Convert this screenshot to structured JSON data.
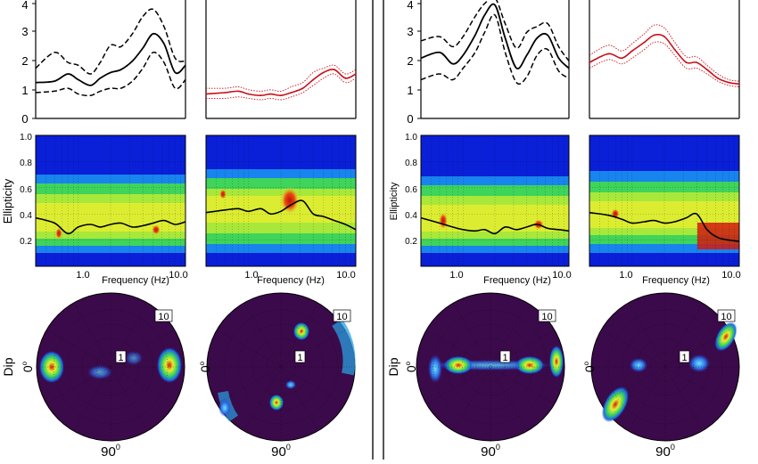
{
  "figure": {
    "panels": [
      {
        "hvsr_axis": {
          "yticks": [
            "0",
            "1",
            "2",
            "3",
            "4"
          ]
        },
        "ellipticity": {
          "ylabel": "Ellipticity",
          "yticks": [
            "0.2",
            "0.4",
            "0.6",
            "0.8",
            "1.0"
          ],
          "xlabel": "Frequency (Hz)",
          "xticks": [
            "1.0",
            "10.0"
          ]
        },
        "polar": {
          "dip_label": "Dip",
          "zero_label": "0",
          "ninety_label": "90",
          "ring_inner": "1",
          "ring_outer": "10"
        }
      },
      {
        "hvsr_axis": {
          "yticks": []
        },
        "ellipticity": {
          "ylabel": "",
          "yticks": [],
          "xlabel": "Frequency (Hz)",
          "xticks": [
            "1.0",
            "10.0"
          ]
        },
        "polar": {
          "dip_label": "",
          "zero_label": "0",
          "ninety_label": "90",
          "ring_inner": "1",
          "ring_outer": "10"
        }
      },
      {
        "hvsr_axis": {
          "yticks": [
            "0",
            "1",
            "2",
            "3",
            "4"
          ]
        },
        "ellipticity": {
          "ylabel": "Ellipticity",
          "yticks": [
            "0.2",
            "0.4",
            "0.6",
            "0.8",
            "1.0"
          ],
          "xlabel": "Frequency (Hz)",
          "xticks": [
            "1.0",
            "10.0"
          ]
        },
        "polar": {
          "dip_label": "Dip",
          "zero_label": "0",
          "ninety_label": "90",
          "ring_inner": "1",
          "ring_outer": "10"
        }
      },
      {
        "hvsr_axis": {
          "yticks": []
        },
        "ellipticity": {
          "ylabel": "",
          "yticks": [],
          "xlabel": "Frequency (Hz)",
          "xticks": [
            "1.0",
            "10.0"
          ]
        },
        "polar": {
          "dip_label": "",
          "zero_label": "0",
          "ninety_label": "90",
          "ring_inner": "1",
          "ring_outer": "10"
        }
      }
    ],
    "colors": {
      "jet_blue": "#0a1fd8",
      "jet_green": "#3fd45a",
      "jet_yellow": "#e8ee30",
      "jet_red": "#d21a10",
      "polar_bg": "#3b0a4a",
      "black_curve": "#000000",
      "red_curve": "#c8101a"
    }
  },
  "chart_data": [
    {
      "type": "line",
      "panel": "A-left",
      "xlog": true,
      "xlim": [
        0.4,
        10
      ],
      "ylim": [
        0,
        4
      ],
      "x": [
        0.4,
        0.6,
        0.8,
        1.0,
        1.3,
        1.6,
        2.0,
        2.5,
        3.2,
        4.0,
        5.0,
        6.3,
        8.0,
        10.0
      ],
      "series": [
        {
          "values": [
            1.25,
            1.3,
            1.55,
            1.35,
            1.15,
            1.4,
            1.6,
            1.7,
            2.0,
            2.45,
            2.95,
            2.6,
            1.6,
            1.85
          ]
        },
        {
          "values": [
            1.75,
            2.3,
            1.95,
            1.85,
            1.55,
            1.95,
            2.55,
            2.5,
            2.95,
            3.55,
            3.8,
            3.2,
            2.1,
            2.0
          ]
        },
        {
          "values": [
            0.9,
            0.95,
            1.05,
            0.85,
            0.8,
            0.95,
            1.05,
            1.05,
            1.3,
            1.75,
            2.3,
            1.95,
            1.05,
            1.35
          ]
        }
      ]
    },
    {
      "type": "line",
      "panel": "B-left",
      "xlog": true,
      "xlim": [
        0.4,
        10
      ],
      "ylim": [
        0,
        4
      ],
      "x": [
        0.4,
        0.6,
        0.8,
        1.0,
        1.3,
        1.6,
        2.0,
        2.5,
        3.2,
        4.0,
        5.0,
        6.3,
        8.0,
        10.0
      ],
      "series": [
        {
          "values": [
            0.85,
            0.9,
            0.95,
            0.85,
            0.8,
            0.85,
            0.8,
            0.9,
            1.05,
            1.35,
            1.6,
            1.7,
            1.4,
            1.55
          ]
        },
        {
          "values": [
            1.05,
            1.05,
            1.1,
            1.0,
            0.95,
            1.0,
            0.95,
            1.1,
            1.25,
            1.6,
            1.75,
            1.85,
            1.55,
            1.7
          ]
        },
        {
          "values": [
            0.7,
            0.7,
            0.75,
            0.7,
            0.65,
            0.7,
            0.65,
            0.75,
            0.9,
            1.15,
            1.4,
            1.55,
            1.25,
            1.4
          ]
        }
      ]
    },
    {
      "type": "line",
      "panel": "A-right",
      "xlog": true,
      "xlim": [
        0.4,
        10
      ],
      "ylim": [
        0,
        4
      ],
      "x": [
        0.4,
        0.6,
        0.8,
        1.0,
        1.3,
        1.6,
        2.0,
        2.5,
        3.2,
        4.0,
        5.0,
        6.3,
        8.0,
        10.0
      ],
      "series": [
        {
          "values": [
            2.1,
            2.3,
            1.9,
            2.2,
            2.9,
            3.6,
            3.95,
            2.8,
            1.75,
            2.2,
            2.8,
            2.9,
            2.1,
            1.75
          ]
        },
        {
          "values": [
            2.7,
            2.85,
            2.5,
            2.85,
            3.55,
            4.0,
            4.2,
            3.3,
            2.45,
            3.0,
            3.2,
            3.3,
            2.5,
            2.0
          ]
        },
        {
          "values": [
            1.35,
            1.55,
            1.35,
            1.75,
            2.3,
            3.0,
            3.6,
            2.3,
            1.25,
            1.45,
            2.2,
            2.4,
            1.65,
            1.4
          ]
        }
      ]
    },
    {
      "type": "line",
      "panel": "B-right",
      "xlog": true,
      "xlim": [
        0.4,
        10
      ],
      "ylim": [
        0,
        4
      ],
      "x": [
        0.4,
        0.6,
        0.8,
        1.0,
        1.3,
        1.6,
        2.0,
        2.5,
        3.2,
        4.0,
        5.0,
        6.3,
        8.0,
        10.0
      ],
      "series": [
        {
          "values": [
            1.95,
            2.25,
            2.1,
            2.35,
            2.65,
            2.9,
            2.85,
            2.4,
            1.95,
            1.95,
            1.7,
            1.4,
            1.25,
            1.2
          ]
        },
        {
          "values": [
            2.2,
            2.55,
            2.35,
            2.6,
            2.95,
            3.25,
            3.15,
            2.65,
            2.15,
            2.15,
            1.85,
            1.55,
            1.35,
            1.3
          ]
        },
        {
          "values": [
            1.75,
            2.05,
            1.9,
            2.1,
            2.4,
            2.65,
            2.6,
            2.2,
            1.75,
            1.75,
            1.55,
            1.3,
            1.15,
            1.1
          ]
        }
      ]
    },
    {
      "type": "line",
      "panel": "A-left-ellipticity",
      "xlog": true,
      "xlim": [
        0.4,
        10
      ],
      "ylim": [
        0,
        1
      ],
      "x": [
        0.4,
        0.6,
        0.8,
        1.0,
        1.3,
        1.6,
        2.0,
        2.5,
        3.2,
        4.0,
        5.0,
        6.3,
        8.0,
        10.0
      ],
      "series": [
        {
          "values": [
            0.37,
            0.33,
            0.25,
            0.3,
            0.32,
            0.3,
            0.32,
            0.33,
            0.3,
            0.31,
            0.33,
            0.35,
            0.32,
            0.34
          ]
        }
      ]
    },
    {
      "type": "line",
      "panel": "B-left-ellipticity",
      "xlog": true,
      "xlim": [
        0.4,
        10
      ],
      "ylim": [
        0,
        1
      ],
      "x": [
        0.4,
        0.6,
        0.8,
        1.0,
        1.3,
        1.6,
        2.0,
        2.5,
        3.2,
        4.0,
        5.0,
        6.3,
        8.0,
        10.0
      ],
      "series": [
        {
          "values": [
            0.41,
            0.43,
            0.44,
            0.42,
            0.44,
            0.4,
            0.42,
            0.47,
            0.5,
            0.4,
            0.38,
            0.35,
            0.32,
            0.28
          ]
        }
      ]
    },
    {
      "type": "line",
      "panel": "A-right-ellipticity",
      "xlog": true,
      "xlim": [
        0.4,
        10
      ],
      "ylim": [
        0,
        1
      ],
      "x": [
        0.4,
        0.6,
        0.8,
        1.0,
        1.3,
        1.6,
        2.0,
        2.5,
        3.2,
        4.0,
        5.0,
        6.3,
        8.0,
        10.0
      ],
      "series": [
        {
          "values": [
            0.37,
            0.33,
            0.3,
            0.28,
            0.27,
            0.28,
            0.25,
            0.3,
            0.28,
            0.3,
            0.32,
            0.29,
            0.28,
            0.27
          ]
        }
      ]
    },
    {
      "type": "line",
      "panel": "B-right-ellipticity",
      "xlog": true,
      "xlim": [
        0.4,
        10
      ],
      "ylim": [
        0,
        1
      ],
      "x": [
        0.4,
        0.6,
        0.8,
        1.0,
        1.3,
        1.6,
        2.0,
        2.5,
        3.2,
        4.0,
        5.0,
        6.3,
        8.0,
        10.0
      ],
      "series": [
        {
          "values": [
            0.41,
            0.39,
            0.36,
            0.33,
            0.34,
            0.35,
            0.33,
            0.34,
            0.37,
            0.4,
            0.28,
            0.22,
            0.2,
            0.19
          ]
        }
      ]
    }
  ]
}
